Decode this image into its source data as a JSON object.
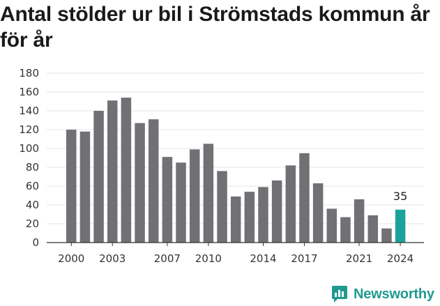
{
  "title": "Antal stölder ur bil i Strömstads kommun år för år",
  "brand": {
    "name": "Newsworthy",
    "icon": "newsworthy-logo-icon"
  },
  "colors": {
    "bar": "#717075",
    "highlight": "#1aa39a",
    "grid": "#e6e6e6",
    "axis": "#333333",
    "brand": "#1f9a8f"
  },
  "chart_data": {
    "type": "bar",
    "x": [
      2000,
      2001,
      2002,
      2003,
      2004,
      2005,
      2006,
      2007,
      2008,
      2009,
      2010,
      2011,
      2012,
      2013,
      2014,
      2015,
      2016,
      2017,
      2018,
      2019,
      2020,
      2021,
      2022,
      2023,
      2024
    ],
    "values": [
      120,
      118,
      140,
      151,
      154,
      127,
      131,
      91,
      85,
      99,
      105,
      76,
      49,
      54,
      59,
      66,
      82,
      95,
      63,
      36,
      27,
      46,
      29,
      15,
      35
    ],
    "x_tick_labels": [
      "2000",
      "2003",
      "2007",
      "2010",
      "2014",
      "2017",
      "2021",
      "2024"
    ],
    "y_ticks": [
      0,
      20,
      40,
      60,
      80,
      100,
      120,
      140,
      160,
      180
    ],
    "ylim": [
      0,
      180
    ],
    "grid": true,
    "legend": "none",
    "highlight": {
      "x": 2024,
      "label": "35"
    }
  }
}
